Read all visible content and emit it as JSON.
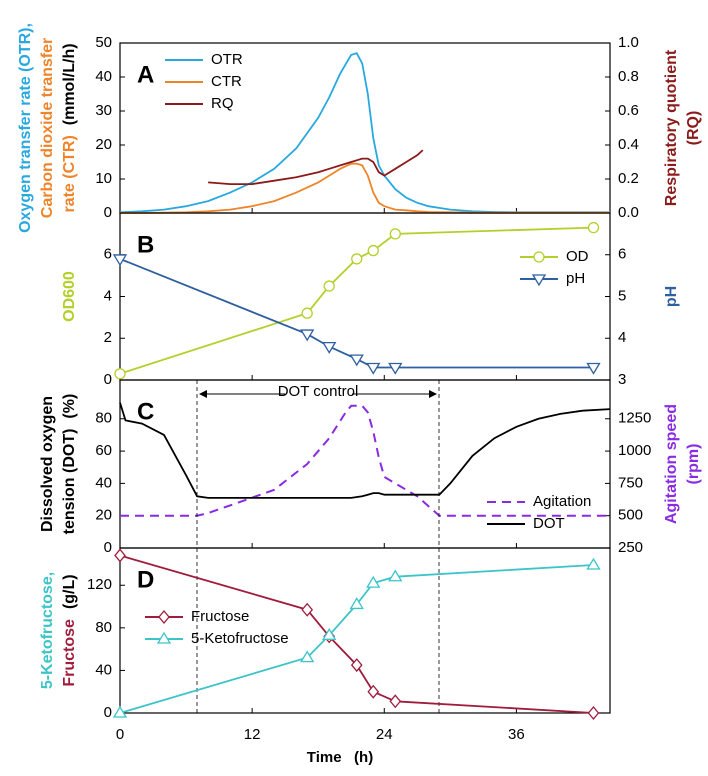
{
  "chart_data": [
    {
      "type": "line",
      "label": "A",
      "ylabel": [
        [
          {
            "text": "Oxygen transfer rate (OTR),",
            "color": "#29a8e0"
          }
        ],
        [
          {
            "text": "Carbon dioxide transfer",
            "color": "#f0842a"
          }
        ],
        [
          {
            "text": "rate (CTR)",
            "color": "#f0842a"
          },
          {
            "text": "(mmol/L/h)",
            "color": "#000000"
          }
        ]
      ],
      "y2label": [
        [
          {
            "text": "Respiratory quotient",
            "color": "#8b1a1a"
          }
        ],
        [
          {
            "text": "(RQ)",
            "color": "#8b1a1a"
          }
        ]
      ],
      "xlim": [
        0,
        44.5
      ],
      "ylim": [
        0,
        50
      ],
      "yticks": [
        0,
        10,
        20,
        30,
        40,
        50
      ],
      "y2lim": [
        0,
        1
      ],
      "y2ticks": [
        {
          "value": 0,
          "label": "0.0"
        },
        0.2,
        0.4,
        0.6,
        0.8,
        {
          "value": 1,
          "label": "1.0"
        }
      ],
      "legend": "upper left",
      "x": [
        0,
        2,
        4,
        6,
        8,
        10,
        12,
        14,
        16,
        18,
        19,
        20,
        21,
        21.5,
        22,
        22.5,
        23,
        23.5,
        24,
        25,
        26,
        27,
        27.5,
        28,
        30,
        32,
        34,
        36,
        40,
        44.5
      ],
      "series": [
        {
          "name": "OTR",
          "color": "#29a8e0",
          "values": [
            0.2,
            0.5,
            1,
            2,
            3.5,
            6,
            9,
            13,
            19,
            28,
            34,
            41,
            46.5,
            47,
            44,
            35,
            22,
            14,
            11,
            7,
            4.5,
            3,
            2.5,
            2,
            1,
            0.5,
            0.3,
            0.2,
            0.2,
            0.2
          ]
        },
        {
          "name": "CTR",
          "color": "#f0842a",
          "values": [
            0,
            0,
            0.1,
            0.2,
            0.5,
            1,
            2,
            3.5,
            6,
            9,
            11,
            13,
            14.5,
            14.5,
            14,
            11,
            6,
            3,
            2,
            1,
            0.8,
            0.5,
            0.4,
            0.3,
            0.2,
            0.1,
            0.1,
            0.1,
            0.1,
            0.1
          ]
        },
        {
          "name": "RQ",
          "color": "#8b1a1a",
          "axis": "y2",
          "values": [
            null,
            null,
            null,
            null,
            0.18,
            0.17,
            0.17,
            0.19,
            0.21,
            0.24,
            0.26,
            0.28,
            0.3,
            0.31,
            0.32,
            0.32,
            0.3,
            0.24,
            0.22,
            0.26,
            0.3,
            0.34,
            0.37,
            null,
            null,
            null,
            null,
            null,
            null,
            null
          ]
        }
      ]
    },
    {
      "type": "line",
      "label": "B",
      "ylabel": [
        [
          {
            "text": "OD600",
            "color": "#b5cf2a"
          }
        ]
      ],
      "y2label": [
        [
          {
            "text": "pH",
            "color": "#2e5fa0"
          }
        ]
      ],
      "xlim": [
        0,
        44.5
      ],
      "ylim": [
        0,
        8
      ],
      "yticks": [
        0,
        2,
        4,
        6
      ],
      "y2lim": [
        3,
        7
      ],
      "y2ticks": [
        3,
        4,
        5,
        6
      ],
      "legend": "center right",
      "x": [
        0,
        17,
        19,
        21.5,
        23,
        25,
        43
      ],
      "series": [
        {
          "name": "OD",
          "color": "#b5cf2a",
          "marker": "circle",
          "values": [
            0.3,
            3.2,
            4.5,
            5.8,
            6.2,
            7.0,
            7.3
          ]
        },
        {
          "name": "pH",
          "color": "#2e5fa0",
          "marker": "triangle-down",
          "axis": "y2",
          "values": [
            5.9,
            4.1,
            3.8,
            3.5,
            3.3,
            3.3,
            3.3
          ]
        }
      ]
    },
    {
      "type": "line",
      "label": "C",
      "annotation": "DOT control",
      "ylabel": [
        [
          {
            "text": "Dissolved oxygen",
            "color": "#000000"
          }
        ],
        [
          {
            "text": "tension (DOT)",
            "color": "#000000"
          },
          {
            "text": "(%)",
            "color": "#000000"
          }
        ]
      ],
      "y2label": [
        [
          {
            "text": "Agitation speed",
            "color": "#8a2be2"
          }
        ],
        [
          {
            "text": "(rpm)",
            "color": "#8a2be2"
          }
        ]
      ],
      "xlim": [
        0,
        44.5
      ],
      "ylim": [
        0,
        104
      ],
      "yticks": [
        0,
        20,
        40,
        60,
        80
      ],
      "y2lim": [
        250,
        1550
      ],
      "y2ticks": [
        250,
        500,
        750,
        1000,
        1250
      ],
      "legend": "lower right",
      "x": [
        0,
        0.5,
        2,
        4,
        6,
        7,
        8,
        10,
        14,
        17,
        19,
        20.5,
        21,
        22,
        22.5,
        23,
        23.5,
        24,
        25,
        27,
        29,
        30,
        32,
        34,
        36,
        38,
        40,
        42,
        44.5
      ],
      "series": [
        {
          "name": "Agitation",
          "color": "#8a2be2",
          "dash": true,
          "axis": "y2",
          "values": [
            500,
            500,
            500,
            500,
            500,
            500,
            520,
            580,
            700,
            900,
            1100,
            1300,
            1350,
            1350,
            1300,
            1150,
            950,
            800,
            750,
            650,
            500,
            500,
            500,
            500,
            500,
            500,
            500,
            500,
            500
          ]
        },
        {
          "name": "DOT",
          "color": "#000000",
          "values": [
            90,
            79,
            77,
            70,
            45,
            32,
            31,
            31,
            31,
            31,
            31,
            31,
            31,
            32,
            33,
            34,
            34,
            33,
            33,
            33,
            33,
            40,
            57,
            68,
            75,
            80,
            83,
            85,
            86
          ]
        }
      ]
    },
    {
      "type": "line",
      "label": "D",
      "ylabel": [
        [
          {
            "text": "5-Ketofructose,",
            "color": "#3cc4c8"
          }
        ],
        [
          {
            "text": "Fructose",
            "color": "#a01c3c"
          },
          {
            "text": "(g/L)",
            "color": "#000000"
          }
        ]
      ],
      "xlabel": "Time   (h)",
      "xlim": [
        0,
        44.5
      ],
      "xticks": [
        0,
        12,
        24,
        36
      ],
      "ylim": [
        0,
        155
      ],
      "yticks": [
        0,
        40,
        80,
        120
      ],
      "legend": "center left",
      "x": [
        0,
        17,
        19,
        21.5,
        23,
        25,
        43
      ],
      "series": [
        {
          "name": "Fructose",
          "color": "#a01c3c",
          "marker": "diamond",
          "values": [
            148,
            97,
            72,
            45,
            20,
            11,
            0
          ]
        },
        {
          "name": "5-Ketofructose",
          "color": "#3cc4c8",
          "marker": "triangle-up",
          "values": [
            0,
            52,
            73,
            102,
            122,
            128,
            139
          ]
        }
      ]
    }
  ]
}
